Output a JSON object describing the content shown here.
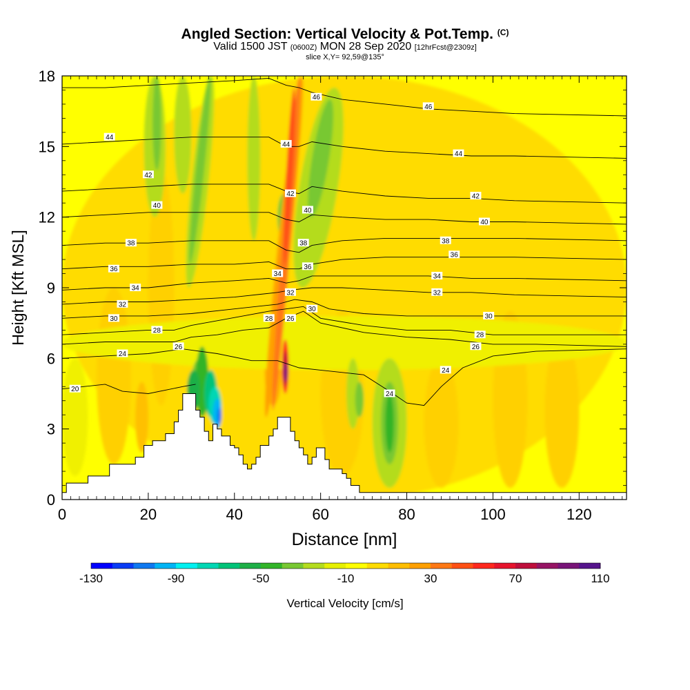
{
  "header": {
    "title": "Angled Section: Vertical Velocity & Pot.Temp.",
    "copyright": "(C)",
    "valid_prefix": "Valid 1500 JST",
    "utc": "(0600Z)",
    "valid_date": "MON 28 Sep 2020",
    "forecast": "[12hrFcst@2309z]",
    "slice": "slice X,Y= 92,59@135°"
  },
  "chart_data": {
    "type": "heatmap",
    "xlabel": "Distance [nm]",
    "ylabel": "Height [Kft MSL]",
    "xlim": [
      0,
      131
    ],
    "ylim": [
      0,
      18
    ],
    "x_ticks": [
      0,
      20,
      40,
      60,
      80,
      100,
      120
    ],
    "y_ticks": [
      0,
      3,
      6,
      9,
      12,
      15,
      18
    ],
    "colorbar": {
      "label": "Vertical Velocity [cm/s]",
      "tick_labels": [
        "-130",
        "-90",
        "-50",
        "-10",
        "30",
        "70",
        "110"
      ],
      "colors": [
        "#0000ff",
        "#0a3cf5",
        "#0f78f0",
        "#00b4f5",
        "#00f0f0",
        "#00d7b4",
        "#00c378",
        "#1eaf46",
        "#32b428",
        "#78c832",
        "#b4dc1e",
        "#e6f000",
        "#ffff00",
        "#ffdc00",
        "#ffbe00",
        "#ffa000",
        "#ff7814",
        "#ff5014",
        "#ff281e",
        "#e6142d",
        "#be0f3c",
        "#961464",
        "#781478",
        "#55148c"
      ]
    },
    "terrain": [
      [
        0,
        0.3
      ],
      [
        1,
        0.7
      ],
      [
        6,
        1.0
      ],
      [
        11,
        1.5
      ],
      [
        15,
        1.5
      ],
      [
        17,
        1.8
      ],
      [
        19,
        2.3
      ],
      [
        21,
        2.5
      ],
      [
        24,
        2.8
      ],
      [
        26,
        3.3
      ],
      [
        27,
        3.8
      ],
      [
        28,
        4.5
      ],
      [
        30,
        4.5
      ],
      [
        31,
        3.8
      ],
      [
        32,
        3.5
      ],
      [
        33,
        2.9
      ],
      [
        34,
        2.5
      ],
      [
        35,
        3.2
      ],
      [
        36,
        3.0
      ],
      [
        37,
        2.7
      ],
      [
        39,
        2.3
      ],
      [
        40,
        2.2
      ],
      [
        41,
        1.9
      ],
      [
        42,
        1.5
      ],
      [
        43,
        1.3
      ],
      [
        44,
        1.5
      ],
      [
        45,
        1.8
      ],
      [
        46,
        2.3
      ],
      [
        48,
        2.7
      ],
      [
        49,
        3.0
      ],
      [
        50,
        3.5
      ],
      [
        52,
        3.5
      ],
      [
        53,
        2.9
      ],
      [
        54,
        2.5
      ],
      [
        55,
        2.2
      ],
      [
        56,
        1.9
      ],
      [
        57,
        1.5
      ],
      [
        58,
        1.8
      ],
      [
        59,
        2.2
      ],
      [
        60,
        2.2
      ],
      [
        61,
        1.7
      ],
      [
        62,
        1.3
      ],
      [
        64,
        1.3
      ],
      [
        65,
        1.1
      ],
      [
        66,
        0.9
      ],
      [
        67,
        0.6
      ],
      [
        69,
        0.3
      ],
      [
        131,
        0.3
      ]
    ],
    "isotherms": [
      {
        "value": 20,
        "label": "20",
        "points": [
          [
            0,
            4.7
          ],
          [
            5,
            4.8
          ],
          [
            10,
            4.9
          ],
          [
            14,
            4.6
          ],
          [
            20,
            4.5
          ],
          [
            28,
            4.8
          ],
          [
            31,
            4.9
          ]
        ]
      },
      {
        "value": 24,
        "label": "24",
        "points": [
          [
            0,
            6.0
          ],
          [
            10,
            6.1
          ],
          [
            20,
            6.2
          ],
          [
            28,
            6.4
          ],
          [
            36,
            6.2
          ],
          [
            44,
            5.9
          ],
          [
            50,
            5.9
          ],
          [
            55,
            5.6
          ],
          [
            60,
            5.5
          ],
          [
            70,
            5.3
          ],
          [
            76,
            4.6
          ],
          [
            80,
            4.1
          ],
          [
            84,
            4.0
          ],
          [
            88,
            4.8
          ],
          [
            93,
            5.6
          ],
          [
            100,
            6.1
          ],
          [
            110,
            6.3
          ],
          [
            131,
            6.4
          ]
        ]
      },
      {
        "value": 26,
        "label": "26",
        "points": [
          [
            0,
            6.6
          ],
          [
            10,
            6.7
          ],
          [
            20,
            6.7
          ],
          [
            26,
            6.7
          ],
          [
            30,
            6.9
          ],
          [
            36,
            7.0
          ],
          [
            42,
            7.2
          ],
          [
            48,
            7.3
          ],
          [
            52,
            7.7
          ],
          [
            56,
            8.0
          ],
          [
            60,
            7.5
          ],
          [
            70,
            7.1
          ],
          [
            80,
            6.9
          ],
          [
            90,
            6.8
          ],
          [
            100,
            6.6
          ],
          [
            110,
            6.6
          ],
          [
            131,
            6.5
          ]
        ]
      },
      {
        "value": 28,
        "label": "28",
        "points": [
          [
            0,
            7.0
          ],
          [
            10,
            7.1
          ],
          [
            20,
            7.2
          ],
          [
            26,
            7.2
          ],
          [
            30,
            7.4
          ],
          [
            36,
            7.6
          ],
          [
            42,
            7.8
          ],
          [
            48,
            8.0
          ],
          [
            52,
            8.1
          ],
          [
            56,
            8.2
          ],
          [
            60,
            7.7
          ],
          [
            70,
            7.4
          ],
          [
            80,
            7.2
          ],
          [
            90,
            7.2
          ],
          [
            100,
            7.0
          ],
          [
            110,
            7.0
          ],
          [
            131,
            7.0
          ]
        ]
      },
      {
        "value": 30,
        "label": "30",
        "points": [
          [
            0,
            7.7
          ],
          [
            10,
            7.8
          ],
          [
            20,
            7.8
          ],
          [
            30,
            7.9
          ],
          [
            40,
            8.1
          ],
          [
            50,
            8.3
          ],
          [
            54,
            8.5
          ],
          [
            58,
            8.4
          ],
          [
            62,
            8.1
          ],
          [
            70,
            7.9
          ],
          [
            80,
            7.8
          ],
          [
            90,
            7.8
          ],
          [
            100,
            7.8
          ],
          [
            110,
            7.8
          ],
          [
            131,
            7.8
          ]
        ]
      },
      {
        "value": 32,
        "label": "32",
        "points": [
          [
            0,
            8.3
          ],
          [
            10,
            8.4
          ],
          [
            20,
            8.4
          ],
          [
            30,
            8.5
          ],
          [
            40,
            8.6
          ],
          [
            50,
            8.8
          ],
          [
            53,
            8.9
          ],
          [
            58,
            9.0
          ],
          [
            65,
            9.0
          ],
          [
            75,
            8.9
          ],
          [
            85,
            8.8
          ],
          [
            95,
            8.8
          ],
          [
            105,
            8.7
          ],
          [
            131,
            8.6
          ]
        ]
      },
      {
        "value": 34,
        "label": "34",
        "points": [
          [
            0,
            8.9
          ],
          [
            10,
            9.0
          ],
          [
            20,
            9.0
          ],
          [
            30,
            9.2
          ],
          [
            40,
            9.3
          ],
          [
            48,
            9.4
          ],
          [
            52,
            9.2
          ],
          [
            55,
            9.3
          ],
          [
            58,
            9.5
          ],
          [
            65,
            9.5
          ],
          [
            75,
            9.5
          ],
          [
            85,
            9.5
          ],
          [
            95,
            9.4
          ],
          [
            105,
            9.4
          ],
          [
            131,
            9.3
          ]
        ]
      },
      {
        "value": 36,
        "label": "36",
        "points": [
          [
            0,
            9.8
          ],
          [
            10,
            9.9
          ],
          [
            20,
            9.9
          ],
          [
            30,
            10.0
          ],
          [
            40,
            10.0
          ],
          [
            48,
            10.1
          ],
          [
            52,
            9.8
          ],
          [
            55,
            9.8
          ],
          [
            58,
            10.0
          ],
          [
            65,
            10.2
          ],
          [
            75,
            10.3
          ],
          [
            85,
            10.3
          ],
          [
            95,
            10.3
          ],
          [
            105,
            10.3
          ],
          [
            131,
            10.2
          ]
        ]
      },
      {
        "value": 38,
        "label": "38",
        "points": [
          [
            0,
            10.8
          ],
          [
            10,
            10.9
          ],
          [
            20,
            10.9
          ],
          [
            30,
            11.0
          ],
          [
            40,
            11.0
          ],
          [
            48,
            11.0
          ],
          [
            52,
            10.6
          ],
          [
            55,
            10.5
          ],
          [
            58,
            10.8
          ],
          [
            65,
            11.0
          ],
          [
            75,
            11.1
          ],
          [
            85,
            11.1
          ],
          [
            95,
            11.1
          ],
          [
            105,
            11.1
          ],
          [
            131,
            11.0
          ]
        ]
      },
      {
        "value": 40,
        "label": "40",
        "points": [
          [
            0,
            12.0
          ],
          [
            10,
            12.1
          ],
          [
            20,
            12.2
          ],
          [
            30,
            12.2
          ],
          [
            40,
            12.2
          ],
          [
            48,
            12.2
          ],
          [
            52,
            11.9
          ],
          [
            55,
            11.8
          ],
          [
            58,
            12.1
          ],
          [
            65,
            12.0
          ],
          [
            75,
            11.9
          ],
          [
            85,
            11.9
          ],
          [
            95,
            11.8
          ],
          [
            105,
            11.8
          ],
          [
            131,
            11.7
          ]
        ]
      },
      {
        "value": 42,
        "label": "42",
        "points": [
          [
            0,
            13.1
          ],
          [
            10,
            13.2
          ],
          [
            20,
            13.3
          ],
          [
            30,
            13.4
          ],
          [
            40,
            13.4
          ],
          [
            48,
            13.4
          ],
          [
            52,
            13.1
          ],
          [
            55,
            13.0
          ],
          [
            58,
            13.3
          ],
          [
            65,
            13.1
          ],
          [
            75,
            12.9
          ],
          [
            85,
            12.8
          ],
          [
            95,
            12.8
          ],
          [
            105,
            12.7
          ],
          [
            131,
            12.6
          ]
        ]
      },
      {
        "value": 44,
        "label": "44",
        "points": [
          [
            0,
            15.1
          ],
          [
            10,
            15.2
          ],
          [
            20,
            15.3
          ],
          [
            30,
            15.4
          ],
          [
            40,
            15.4
          ],
          [
            48,
            15.4
          ],
          [
            52,
            15.0
          ],
          [
            55,
            15.0
          ],
          [
            58,
            15.2
          ],
          [
            65,
            15.0
          ],
          [
            75,
            14.8
          ],
          [
            85,
            14.7
          ],
          [
            95,
            14.6
          ],
          [
            105,
            14.6
          ],
          [
            131,
            14.5
          ]
        ]
      },
      {
        "value": 46,
        "label": "46",
        "points": [
          [
            0,
            17.5
          ],
          [
            10,
            17.5
          ],
          [
            20,
            17.6
          ],
          [
            30,
            17.7
          ],
          [
            40,
            17.8
          ],
          [
            48,
            17.9
          ],
          [
            52,
            17.6
          ],
          [
            55,
            17.5
          ],
          [
            58,
            17.3
          ],
          [
            65,
            17.0
          ],
          [
            75,
            16.8
          ],
          [
            85,
            16.6
          ],
          [
            95,
            16.5
          ],
          [
            105,
            16.4
          ],
          [
            131,
            16.3
          ]
        ]
      }
    ],
    "isotherm_labels": [
      {
        "text": "20",
        "x": 3,
        "y": 4.7
      },
      {
        "text": "24",
        "x": 14,
        "y": 6.2
      },
      {
        "text": "24",
        "x": 76,
        "y": 4.5
      },
      {
        "text": "24",
        "x": 89,
        "y": 5.5
      },
      {
        "text": "26",
        "x": 27,
        "y": 6.5
      },
      {
        "text": "26",
        "x": 53,
        "y": 7.7
      },
      {
        "text": "26",
        "x": 96,
        "y": 6.5
      },
      {
        "text": "28",
        "x": 22,
        "y": 7.2
      },
      {
        "text": "28",
        "x": 48,
        "y": 7.7
      },
      {
        "text": "28",
        "x": 97,
        "y": 7.0
      },
      {
        "text": "30",
        "x": 12,
        "y": 7.7
      },
      {
        "text": "30",
        "x": 58,
        "y": 8.1
      },
      {
        "text": "30",
        "x": 99,
        "y": 7.8
      },
      {
        "text": "32",
        "x": 14,
        "y": 8.3
      },
      {
        "text": "32",
        "x": 53,
        "y": 8.8
      },
      {
        "text": "32",
        "x": 87,
        "y": 8.8
      },
      {
        "text": "34",
        "x": 17,
        "y": 9.0
      },
      {
        "text": "34",
        "x": 50,
        "y": 9.6
      },
      {
        "text": "34",
        "x": 87,
        "y": 9.5
      },
      {
        "text": "36",
        "x": 12,
        "y": 9.8
      },
      {
        "text": "36",
        "x": 57,
        "y": 9.9
      },
      {
        "text": "36",
        "x": 91,
        "y": 10.4
      },
      {
        "text": "38",
        "x": 16,
        "y": 10.9
      },
      {
        "text": "38",
        "x": 56,
        "y": 10.9
      },
      {
        "text": "38",
        "x": 89,
        "y": 11.0
      },
      {
        "text": "40",
        "x": 22,
        "y": 12.5
      },
      {
        "text": "40",
        "x": 57,
        "y": 12.3
      },
      {
        "text": "40",
        "x": 98,
        "y": 11.8
      },
      {
        "text": "42",
        "x": 20,
        "y": 13.8
      },
      {
        "text": "42",
        "x": 53,
        "y": 13.0
      },
      {
        "text": "42",
        "x": 96,
        "y": 12.9
      },
      {
        "text": "44",
        "x": 11,
        "y": 15.4
      },
      {
        "text": "44",
        "x": 52,
        "y": 15.1
      },
      {
        "text": "44",
        "x": 92,
        "y": 14.7
      },
      {
        "text": "46",
        "x": 59,
        "y": 17.1
      },
      {
        "text": "46",
        "x": 85,
        "y": 16.7
      }
    ]
  }
}
